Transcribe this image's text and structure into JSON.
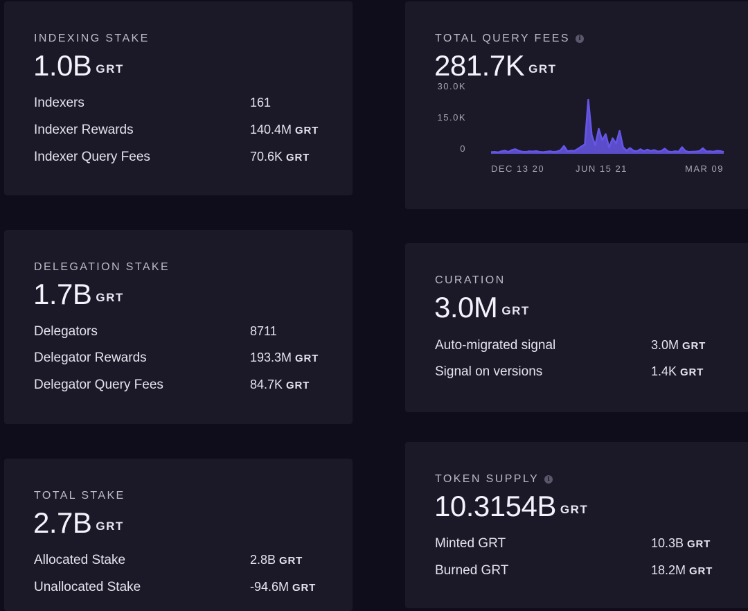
{
  "indexing": {
    "title": "INDEXING STAKE",
    "value": "1.0B",
    "unit": "GRT",
    "rows": [
      {
        "name": "Indexers",
        "value": "161",
        "unit": ""
      },
      {
        "name": "Indexer Rewards",
        "value": "140.4M",
        "unit": "GRT"
      },
      {
        "name": "Indexer Query Fees",
        "value": "70.6K",
        "unit": "GRT"
      }
    ]
  },
  "delegation": {
    "title": "DELEGATION STAKE",
    "value": "1.7B",
    "unit": "GRT",
    "rows": [
      {
        "name": "Delegators",
        "value": "8711",
        "unit": ""
      },
      {
        "name": "Delegator Rewards",
        "value": "193.3M",
        "unit": "GRT"
      },
      {
        "name": "Delegator Query Fees",
        "value": "84.7K",
        "unit": "GRT"
      }
    ]
  },
  "total_stake": {
    "title": "TOTAL STAKE",
    "value": "2.7B",
    "unit": "GRT",
    "rows": [
      {
        "name": "Allocated Stake",
        "value": "2.8B",
        "unit": "GRT"
      },
      {
        "name": "Unallocated Stake",
        "value": "-94.6M",
        "unit": "GRT"
      }
    ]
  },
  "query_fees": {
    "title": "TOTAL QUERY FEES",
    "info_icon": "info-icon",
    "value": "281.7K",
    "unit": "GRT"
  },
  "curation": {
    "title": "CURATION",
    "value": "3.0M",
    "unit": "GRT",
    "rows": [
      {
        "name": "Auto-migrated signal",
        "value": "3.0M",
        "unit": "GRT"
      },
      {
        "name": "Signal on versions",
        "value": "1.4K",
        "unit": "GRT"
      }
    ]
  },
  "token_supply": {
    "title": "TOKEN SUPPLY",
    "info_icon": "info-icon",
    "value": "10.3154B",
    "unit": "GRT",
    "rows": [
      {
        "name": "Minted GRT",
        "value": "10.3B",
        "unit": "GRT"
      },
      {
        "name": "Burned GRT",
        "value": "18.2M",
        "unit": "GRT"
      }
    ]
  },
  "colors": {
    "background": "#0f0d1b",
    "card": "#1b1927",
    "line": "#6656e8"
  },
  "chart_data": {
    "type": "area",
    "title": "",
    "xlabel": "",
    "ylabel": "",
    "y_ticks": [
      {
        "value": 0,
        "label": "0"
      },
      {
        "value": 15000,
        "label": "15.0K"
      },
      {
        "value": 30000,
        "label": "30.0K"
      }
    ],
    "x_ticks": [
      {
        "index": 0,
        "label": "DEC 13 20"
      },
      {
        "index": 28,
        "label": "JUN 15 21"
      },
      {
        "index": 59,
        "label": "MAR 09"
      }
    ],
    "ylim": [
      0,
      30000
    ],
    "grid": false,
    "series": [
      {
        "values": [
          800,
          900,
          700,
          1200,
          1500,
          900,
          1800,
          2200,
          1400,
          1000,
          900,
          1200,
          1100,
          1300,
          900,
          800,
          1000,
          1200,
          900,
          1100,
          1700,
          3800,
          1200,
          1500,
          1400,
          2400,
          3500,
          4500,
          26000,
          9000,
          4000,
          12000,
          6500,
          9500,
          3000,
          7500,
          5000,
          11000,
          3200,
          1500,
          2800,
          1500,
          1200,
          2200,
          1300,
          2000,
          1400,
          1800,
          1100,
          1300,
          2500,
          1100,
          900,
          1200,
          1000,
          3200,
          1300,
          900,
          1000,
          1100,
          1300,
          2700,
          1100,
          1200,
          1000,
          1400,
          1300,
          900
        ]
      }
    ]
  }
}
